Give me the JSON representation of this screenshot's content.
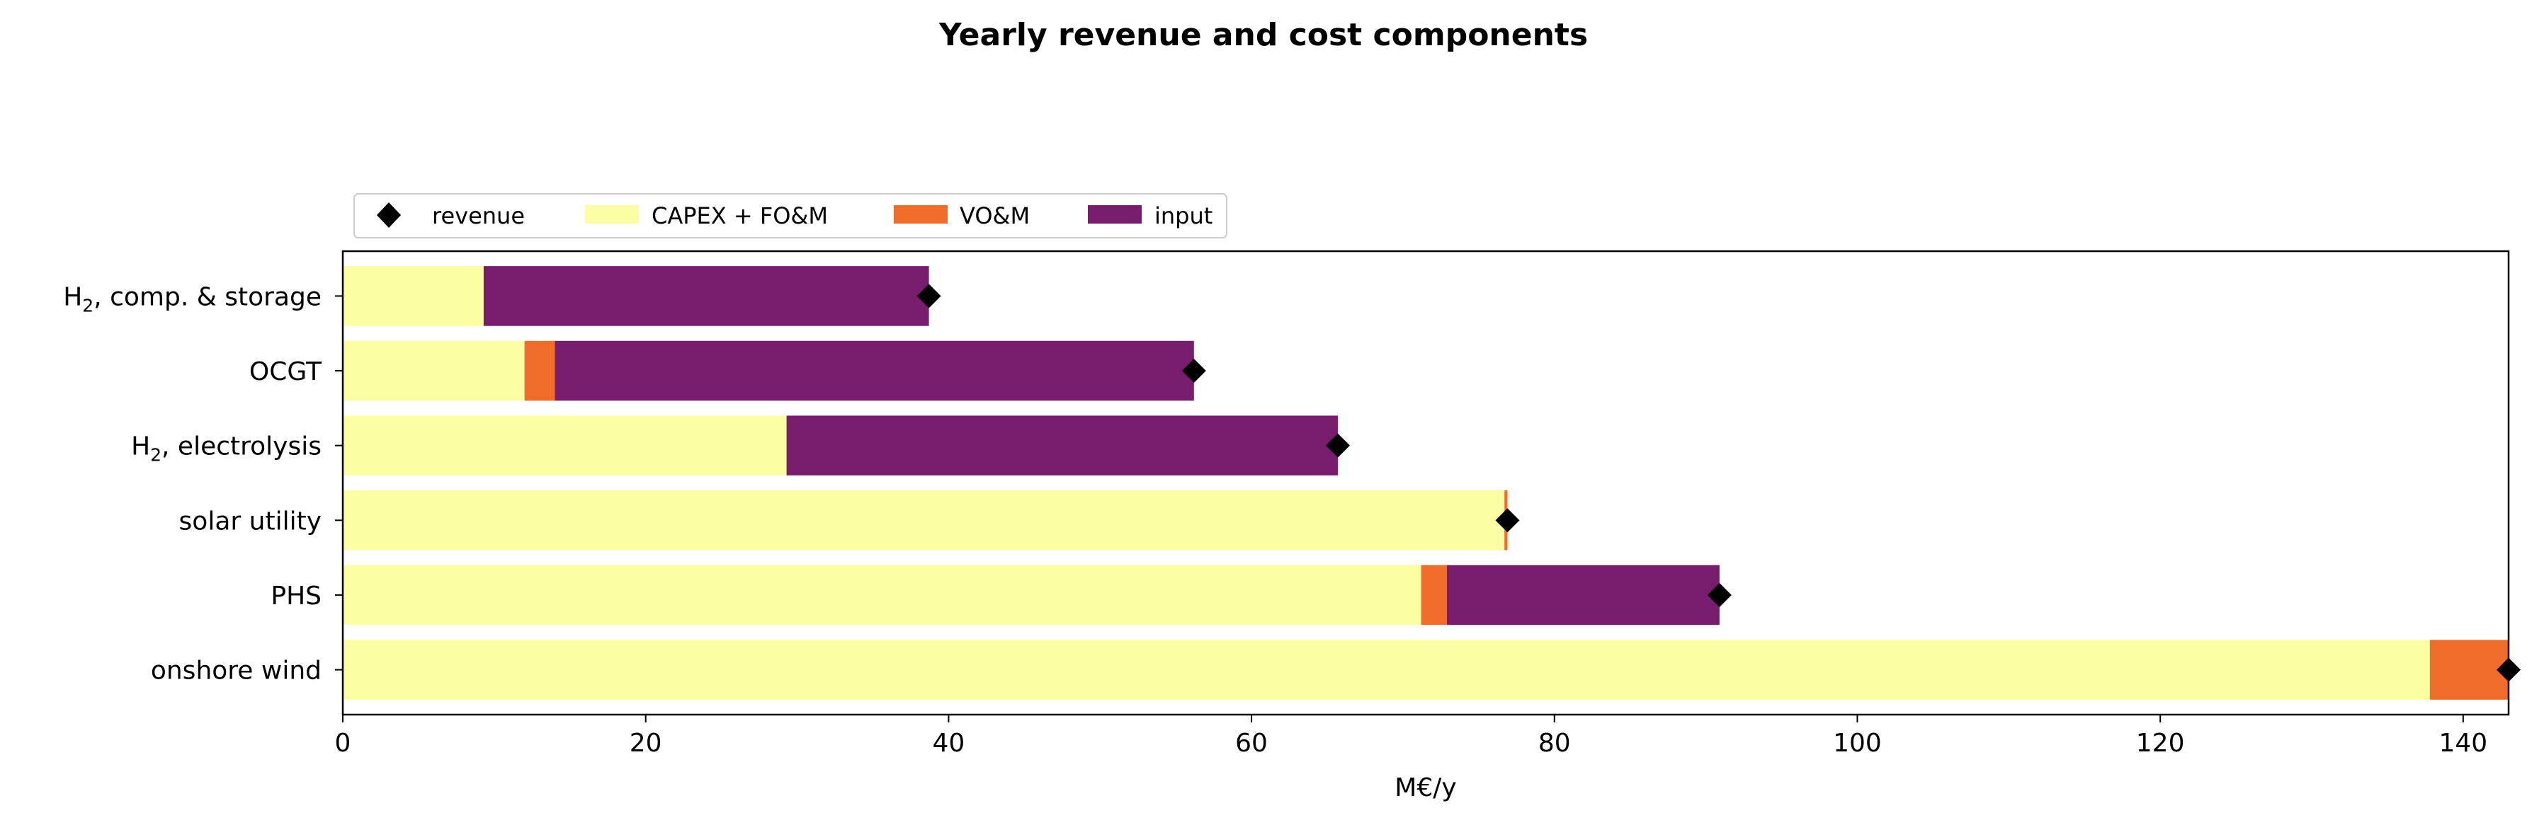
{
  "chart_data": {
    "type": "bar",
    "orientation": "horizontal",
    "stacked": true,
    "title": "Yearly revenue and cost components",
    "xlabel": "M€/y",
    "ylabel": "",
    "xlim": [
      0,
      143
    ],
    "x_ticks": [
      0,
      20,
      40,
      60,
      80,
      100,
      120,
      140
    ],
    "grid": false,
    "legend_position": "top-left, above plot",
    "categories": [
      {
        "label": "onshore wind",
        "sub": "",
        "rest": ""
      },
      {
        "label": "PHS",
        "sub": "",
        "rest": ""
      },
      {
        "label": "solar utility",
        "sub": "",
        "rest": ""
      },
      {
        "label": "H",
        "sub": "2",
        "rest": ", electrolysis"
      },
      {
        "label": "OCGT",
        "sub": "",
        "rest": ""
      },
      {
        "label": "H",
        "sub": "2",
        "rest": ", comp. & storage"
      }
    ],
    "series": [
      {
        "name": "CAPEX + FO&M",
        "color": "#fcfea4",
        "values": [
          137.8,
          71.2,
          76.7,
          29.3,
          12.0,
          9.3
        ]
      },
      {
        "name": "VO&M",
        "color": "#f06c2a",
        "values": [
          5.2,
          1.7,
          0.2,
          0.0,
          2.0,
          0.0
        ]
      },
      {
        "name": "input",
        "color": "#781c6d",
        "values": [
          0.0,
          18.0,
          0.0,
          36.4,
          42.2,
          29.4
        ]
      }
    ],
    "revenue": {
      "name": "revenue",
      "color": "#000000",
      "marker": "diamond",
      "values": [
        143.0,
        90.9,
        76.9,
        65.7,
        56.2,
        38.7
      ]
    }
  }
}
